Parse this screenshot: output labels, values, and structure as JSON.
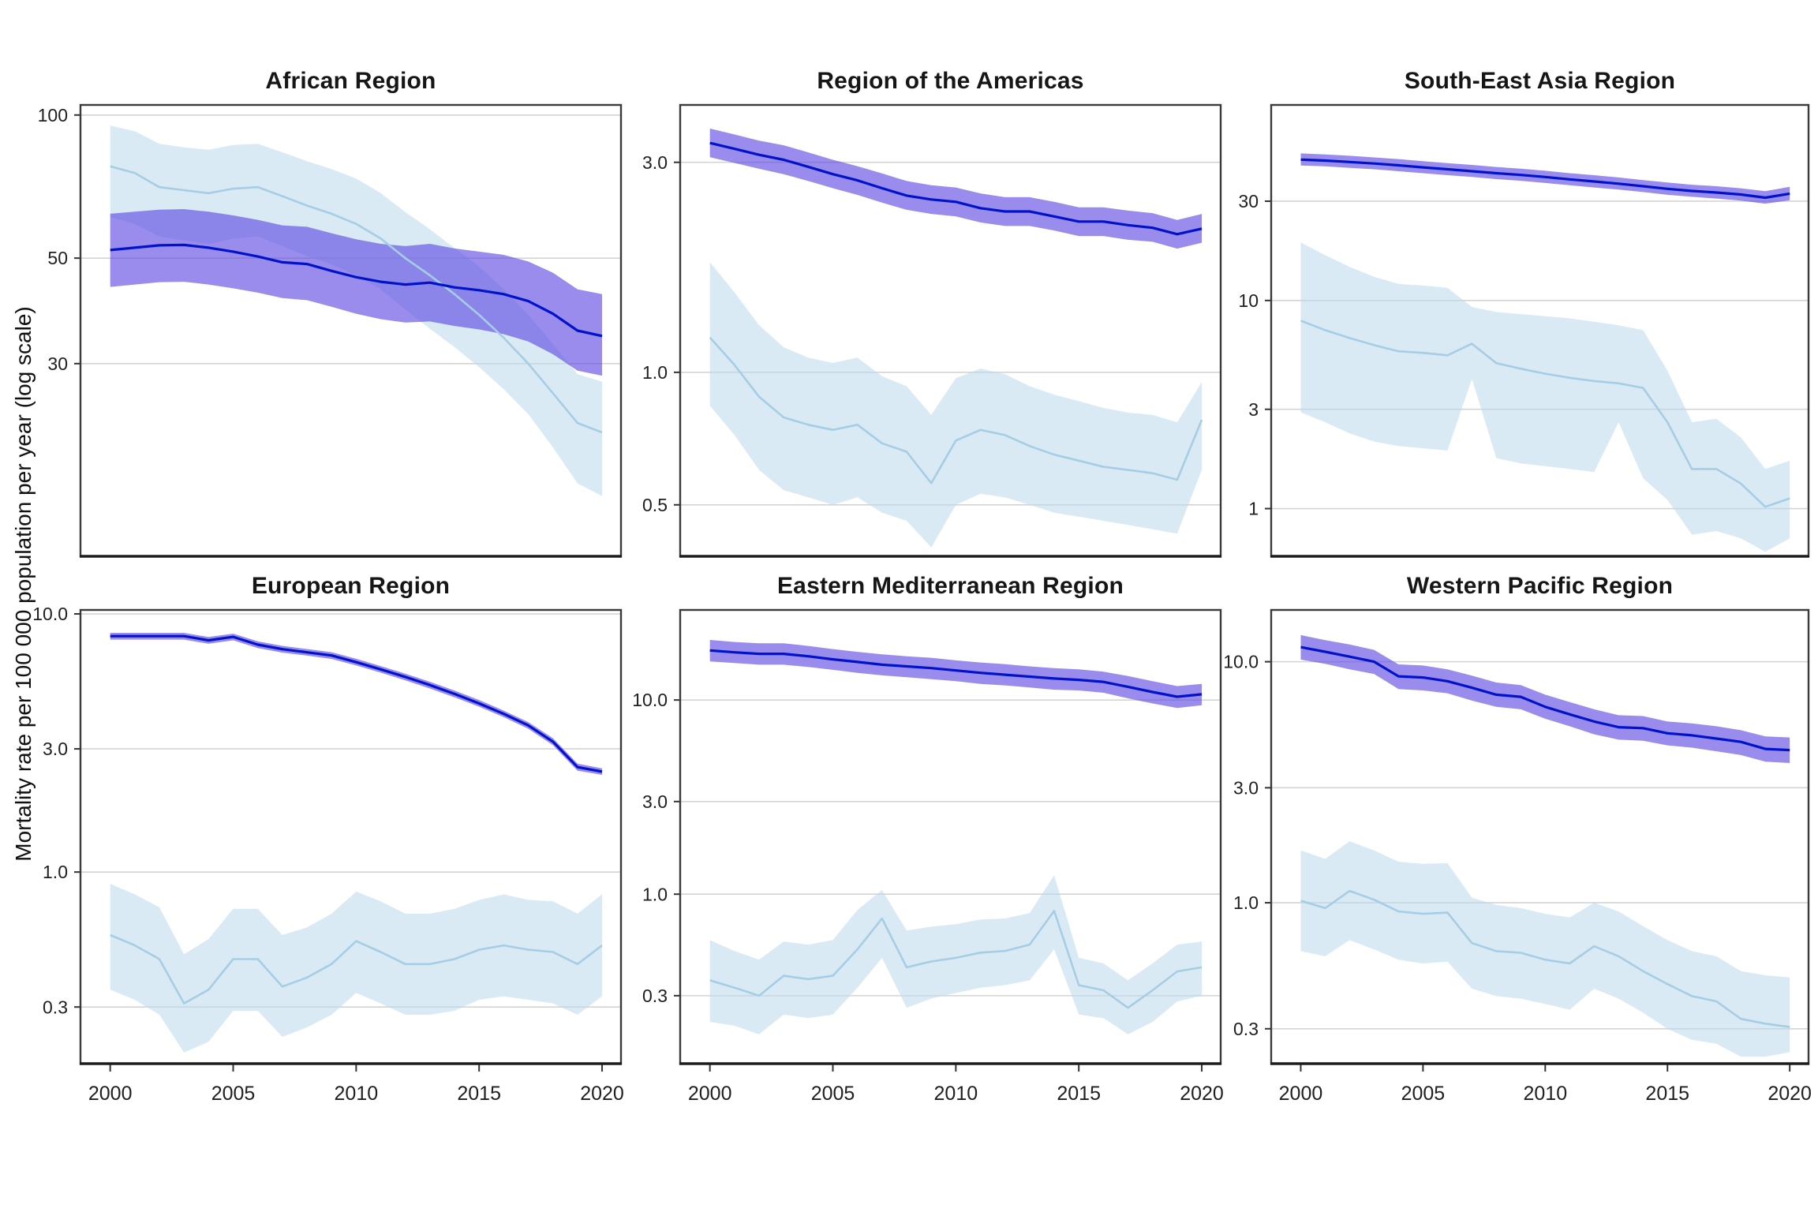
{
  "figure": {
    "ylabel": "Mortality rate per 100 000 population per year (log scale)",
    "years": [
      2000,
      2001,
      2002,
      2003,
      2004,
      2005,
      2006,
      2007,
      2008,
      2009,
      2010,
      2011,
      2012,
      2013,
      2014,
      2015,
      2016,
      2017,
      2018,
      2019,
      2020
    ],
    "xtick_values": [
      2000,
      2005,
      2010,
      2015,
      2020
    ],
    "xtick_labels": [
      "2000",
      "2005",
      "2010",
      "2015",
      "2020"
    ],
    "colors": {
      "dark_line": "#0013cb",
      "dark_band_fill": "#5a45e2",
      "dark_band_opacity": 0.62,
      "light_line": "#a5cde4",
      "light_band_fill": "#bcd8ec",
      "light_band_opacity": 0.55,
      "gridline": "#d4d4d4",
      "panel_border": "#3a3a3a",
      "tick_text": "#1f1f1f"
    }
  },
  "chart_data": [
    {
      "title": "African Region",
      "type": "line",
      "ylog": true,
      "ylim": [
        11.8,
        105
      ],
      "ytick_values": [
        100,
        50,
        30
      ],
      "ytick_labels": [
        "100",
        "50",
        "30"
      ],
      "show_x_labels": false,
      "series": [
        {
          "name": "dark_blue_series",
          "values": [
            52,
            52.6,
            53.2,
            53.3,
            52.6,
            51.6,
            50.4,
            49,
            48.6,
            47,
            45.6,
            44.6,
            44,
            44.4,
            43.4,
            42.8,
            42,
            40.6,
            38.2,
            35.2,
            34.3
          ],
          "lower": [
            43.5,
            44,
            44.5,
            44.6,
            44,
            43.2,
            42.3,
            41.2,
            40.8,
            39.5,
            38.2,
            37.2,
            36.6,
            36.8,
            36,
            35.4,
            34.6,
            33.4,
            31.4,
            29,
            28.3
          ],
          "upper": [
            62,
            62.6,
            63.2,
            63.4,
            62.6,
            61.5,
            60.2,
            58.6,
            58.2,
            56.4,
            54.8,
            53.6,
            53,
            53.6,
            52.4,
            51.6,
            50.8,
            49.2,
            46.6,
            43,
            42
          ]
        },
        {
          "name": "light_blue_series",
          "values": [
            78,
            75.5,
            70.5,
            69.5,
            68.5,
            70,
            70.5,
            67.5,
            64.5,
            62,
            59,
            55,
            50,
            46,
            42,
            38,
            34,
            30,
            26,
            22.5,
            21.5
          ],
          "lower": [
            61,
            59,
            55.5,
            54.5,
            53.5,
            55,
            55.5,
            53,
            50.5,
            48.5,
            46,
            43,
            39,
            35.5,
            32.5,
            29.5,
            26.5,
            23.5,
            20,
            16.8,
            15.8
          ],
          "upper": [
            95,
            92.5,
            87,
            85.5,
            84.5,
            86.5,
            87,
            83.5,
            80,
            77,
            73.5,
            68.5,
            62.5,
            57.5,
            52.5,
            48,
            43,
            38,
            33,
            28.5,
            27.5
          ]
        }
      ]
    },
    {
      "title": "Region of the Americas",
      "type": "line",
      "ylog": true,
      "ylim": [
        0.382,
        4.05
      ],
      "ytick_values": [
        3.0,
        1.0,
        0.5
      ],
      "ytick_labels": [
        "3.0",
        "1.0",
        "0.5"
      ],
      "show_x_labels": false,
      "series": [
        {
          "name": "dark_blue_series",
          "values": [
            3.32,
            3.22,
            3.12,
            3.04,
            2.93,
            2.82,
            2.73,
            2.62,
            2.52,
            2.47,
            2.44,
            2.36,
            2.32,
            2.32,
            2.26,
            2.2,
            2.2,
            2.16,
            2.13,
            2.06,
            2.12
          ],
          "lower": [
            3.08,
            2.99,
            2.9,
            2.82,
            2.72,
            2.62,
            2.53,
            2.43,
            2.34,
            2.29,
            2.26,
            2.19,
            2.15,
            2.15,
            2.1,
            2.04,
            2.04,
            2,
            1.98,
            1.91,
            1.97
          ],
          "upper": [
            3.58,
            3.47,
            3.36,
            3.28,
            3.16,
            3.04,
            2.94,
            2.83,
            2.72,
            2.66,
            2.63,
            2.55,
            2.5,
            2.5,
            2.44,
            2.37,
            2.37,
            2.33,
            2.3,
            2.22,
            2.29
          ]
        },
        {
          "name": "light_blue_series",
          "values": [
            1.2,
            1.04,
            0.88,
            0.79,
            0.76,
            0.74,
            0.76,
            0.69,
            0.66,
            0.56,
            0.7,
            0.74,
            0.72,
            0.68,
            0.65,
            0.63,
            0.61,
            0.6,
            0.59,
            0.57,
            0.78
          ],
          "lower": [
            0.84,
            0.72,
            0.6,
            0.54,
            0.52,
            0.5,
            0.52,
            0.48,
            0.46,
            0.4,
            0.5,
            0.53,
            0.52,
            0.5,
            0.48,
            0.47,
            0.46,
            0.45,
            0.44,
            0.43,
            0.6
          ],
          "upper": [
            1.78,
            1.52,
            1.28,
            1.14,
            1.08,
            1.05,
            1.08,
            0.98,
            0.93,
            0.8,
            0.97,
            1.02,
            0.99,
            0.93,
            0.89,
            0.86,
            0.83,
            0.81,
            0.8,
            0.77,
            0.95
          ]
        }
      ]
    },
    {
      "title": "South-East Asia Region",
      "type": "line",
      "ylog": true,
      "ylim": [
        0.59,
        87
      ],
      "ytick_values": [
        30,
        10,
        3,
        1
      ],
      "ytick_labels": [
        "30",
        "10",
        "3",
        "1"
      ],
      "show_x_labels": false,
      "series": [
        {
          "name": "dark_blue_series",
          "values": [
            47.5,
            47,
            46.3,
            45.5,
            44.6,
            43.6,
            42.7,
            41.8,
            40.9,
            40.1,
            39.2,
            38.2,
            37.3,
            36.4,
            35.4,
            34.4,
            33.6,
            33,
            32.3,
            31.2,
            32.6
          ],
          "lower": [
            44.5,
            44.1,
            43.4,
            42.7,
            41.8,
            40.9,
            40,
            39.2,
            38.3,
            37.6,
            36.7,
            35.8,
            34.9,
            34.1,
            33.2,
            32.2,
            31.5,
            30.9,
            30.2,
            29.2,
            30.3
          ],
          "upper": [
            50.9,
            50.3,
            49.6,
            48.7,
            47.8,
            46.7,
            45.7,
            44.8,
            43.8,
            43,
            42,
            40.9,
            40,
            39,
            37.9,
            36.9,
            36,
            35.4,
            34.6,
            33.5,
            35.2
          ]
        },
        {
          "name": "light_blue_series",
          "values": [
            8,
            7.2,
            6.6,
            6.1,
            5.7,
            5.6,
            5.45,
            6.2,
            5,
            4.7,
            4.45,
            4.25,
            4.1,
            4,
            3.8,
            2.6,
            1.55,
            1.55,
            1.32,
            1.02,
            1.12
          ],
          "lower": [
            2.9,
            2.6,
            2.3,
            2.1,
            2,
            1.95,
            1.9,
            4.2,
            1.75,
            1.65,
            1.6,
            1.55,
            1.5,
            2.6,
            1.4,
            1.1,
            0.75,
            0.78,
            0.72,
            0.62,
            0.72
          ],
          "upper": [
            19,
            16.5,
            14.5,
            13,
            12,
            11.8,
            11.5,
            9.3,
            8.8,
            8.6,
            8.4,
            8.2,
            7.9,
            7.6,
            7.2,
            4.6,
            2.6,
            2.7,
            2.2,
            1.55,
            1.7
          ]
        }
      ]
    },
    {
      "title": "European Region",
      "type": "line",
      "ylog": true,
      "ylim": [
        0.181,
        10.36
      ],
      "ytick_values": [
        10.0,
        3.0,
        1.0,
        0.3
      ],
      "ytick_labels": [
        "10.0",
        "3.0",
        "1.0",
        "0.3"
      ],
      "show_x_labels": true,
      "series": [
        {
          "name": "dark_blue_series",
          "values": [
            8.2,
            8.2,
            8.2,
            8.2,
            7.9,
            8.15,
            7.6,
            7.3,
            7.1,
            6.9,
            6.5,
            6.1,
            5.7,
            5.3,
            4.9,
            4.5,
            4.1,
            3.7,
            3.2,
            2.55,
            2.45
          ],
          "lower": [
            7.95,
            7.95,
            7.95,
            7.95,
            7.66,
            7.9,
            7.37,
            7.08,
            6.89,
            6.69,
            6.31,
            5.92,
            5.53,
            5.14,
            4.75,
            4.37,
            3.98,
            3.59,
            3.1,
            2.47,
            2.38
          ],
          "upper": [
            8.45,
            8.45,
            8.45,
            8.45,
            8.14,
            8.39,
            7.83,
            7.52,
            7.31,
            7.11,
            6.7,
            6.28,
            5.87,
            5.46,
            5.05,
            4.64,
            4.22,
            3.81,
            3.3,
            2.63,
            2.52
          ]
        },
        {
          "name": "light_blue_series",
          "values": [
            0.57,
            0.52,
            0.46,
            0.31,
            0.35,
            0.46,
            0.46,
            0.36,
            0.39,
            0.44,
            0.54,
            0.49,
            0.44,
            0.44,
            0.46,
            0.5,
            0.52,
            0.5,
            0.49,
            0.44,
            0.52
          ],
          "lower": [
            0.35,
            0.32,
            0.28,
            0.2,
            0.22,
            0.29,
            0.29,
            0.23,
            0.25,
            0.28,
            0.34,
            0.31,
            0.28,
            0.28,
            0.29,
            0.32,
            0.33,
            0.32,
            0.31,
            0.28,
            0.33
          ],
          "upper": [
            0.9,
            0.82,
            0.73,
            0.48,
            0.55,
            0.72,
            0.72,
            0.57,
            0.61,
            0.69,
            0.84,
            0.77,
            0.69,
            0.69,
            0.72,
            0.78,
            0.82,
            0.78,
            0.77,
            0.69,
            0.82
          ]
        }
      ]
    },
    {
      "title": "Eastern Mediterranean Region",
      "type": "line",
      "ylog": true,
      "ylim": [
        0.134,
        29.1
      ],
      "ytick_values": [
        10.0,
        3.0,
        1.0,
        0.3
      ],
      "ytick_labels": [
        "10.0",
        "3.0",
        "1.0",
        "0.3"
      ],
      "show_x_labels": true,
      "series": [
        {
          "name": "dark_blue_series",
          "values": [
            18,
            17.6,
            17.3,
            17.3,
            16.8,
            16.2,
            15.7,
            15.2,
            14.9,
            14.6,
            14.2,
            13.8,
            13.5,
            13.2,
            12.9,
            12.7,
            12.4,
            11.7,
            11,
            10.4,
            10.7
          ],
          "lower": [
            15.8,
            15.5,
            15.2,
            15.2,
            14.8,
            14.3,
            13.8,
            13.4,
            13.1,
            12.8,
            12.5,
            12.1,
            11.9,
            11.6,
            11.3,
            11.2,
            10.9,
            10.2,
            9.6,
            9.1,
            9.4
          ],
          "upper": [
            20.4,
            19.9,
            19.6,
            19.6,
            19,
            18.3,
            17.7,
            17.2,
            16.8,
            16.5,
            16,
            15.6,
            15.3,
            14.9,
            14.6,
            14.4,
            14,
            13.3,
            12.5,
            11.8,
            12.1
          ]
        },
        {
          "name": "light_blue_series",
          "values": [
            0.36,
            0.33,
            0.3,
            0.38,
            0.365,
            0.38,
            0.52,
            0.75,
            0.42,
            0.45,
            0.47,
            0.5,
            0.51,
            0.55,
            0.82,
            0.34,
            0.32,
            0.26,
            0.32,
            0.4,
            0.42
          ],
          "lower": [
            0.22,
            0.21,
            0.19,
            0.24,
            0.23,
            0.24,
            0.33,
            0.47,
            0.26,
            0.29,
            0.31,
            0.33,
            0.34,
            0.36,
            0.52,
            0.24,
            0.23,
            0.19,
            0.22,
            0.28,
            0.3
          ],
          "upper": [
            0.58,
            0.51,
            0.46,
            0.57,
            0.55,
            0.58,
            0.83,
            1.05,
            0.65,
            0.68,
            0.7,
            0.74,
            0.75,
            0.8,
            1.25,
            0.47,
            0.44,
            0.36,
            0.44,
            0.55,
            0.57
          ]
        }
      ]
    },
    {
      "title": "Western Pacific Region",
      "type": "line",
      "ylog": true,
      "ylim": [
        0.215,
        16.4
      ],
      "ytick_values": [
        10.0,
        3.0,
        1.0,
        0.3
      ],
      "ytick_labels": [
        "10.0",
        "3.0",
        "1.0",
        "0.3"
      ],
      "show_x_labels": true,
      "series": [
        {
          "name": "dark_blue_series",
          "values": [
            11.5,
            11,
            10.5,
            10,
            8.7,
            8.6,
            8.3,
            7.8,
            7.3,
            7.15,
            6.5,
            6.05,
            5.65,
            5.35,
            5.3,
            5.05,
            4.95,
            4.8,
            4.65,
            4.35,
            4.3
          ],
          "lower": [
            10.2,
            9.8,
            9.3,
            8.9,
            7.7,
            7.6,
            7.4,
            6.9,
            6.5,
            6.35,
            5.8,
            5.4,
            5,
            4.75,
            4.7,
            4.5,
            4.4,
            4.25,
            4.1,
            3.85,
            3.8
          ],
          "upper": [
            12.9,
            12.3,
            11.8,
            11.2,
            9.75,
            9.65,
            9.3,
            8.75,
            8.2,
            8,
            7.3,
            6.8,
            6.35,
            6,
            5.95,
            5.65,
            5.55,
            5.4,
            5.2,
            4.9,
            4.85
          ]
        },
        {
          "name": "light_blue_series",
          "values": [
            1.02,
            0.95,
            1.12,
            1.03,
            0.92,
            0.9,
            0.91,
            0.68,
            0.63,
            0.62,
            0.58,
            0.56,
            0.66,
            0.6,
            0.52,
            0.46,
            0.41,
            0.39,
            0.33,
            0.315,
            0.305
          ],
          "lower": [
            0.63,
            0.6,
            0.7,
            0.64,
            0.58,
            0.56,
            0.57,
            0.44,
            0.41,
            0.4,
            0.38,
            0.36,
            0.44,
            0.4,
            0.35,
            0.3,
            0.27,
            0.26,
            0.23,
            0.23,
            0.24
          ],
          "upper": [
            1.65,
            1.52,
            1.8,
            1.65,
            1.48,
            1.45,
            1.46,
            1.05,
            0.98,
            0.95,
            0.9,
            0.87,
            1,
            0.92,
            0.8,
            0.7,
            0.63,
            0.6,
            0.52,
            0.5,
            0.49
          ]
        }
      ]
    }
  ]
}
